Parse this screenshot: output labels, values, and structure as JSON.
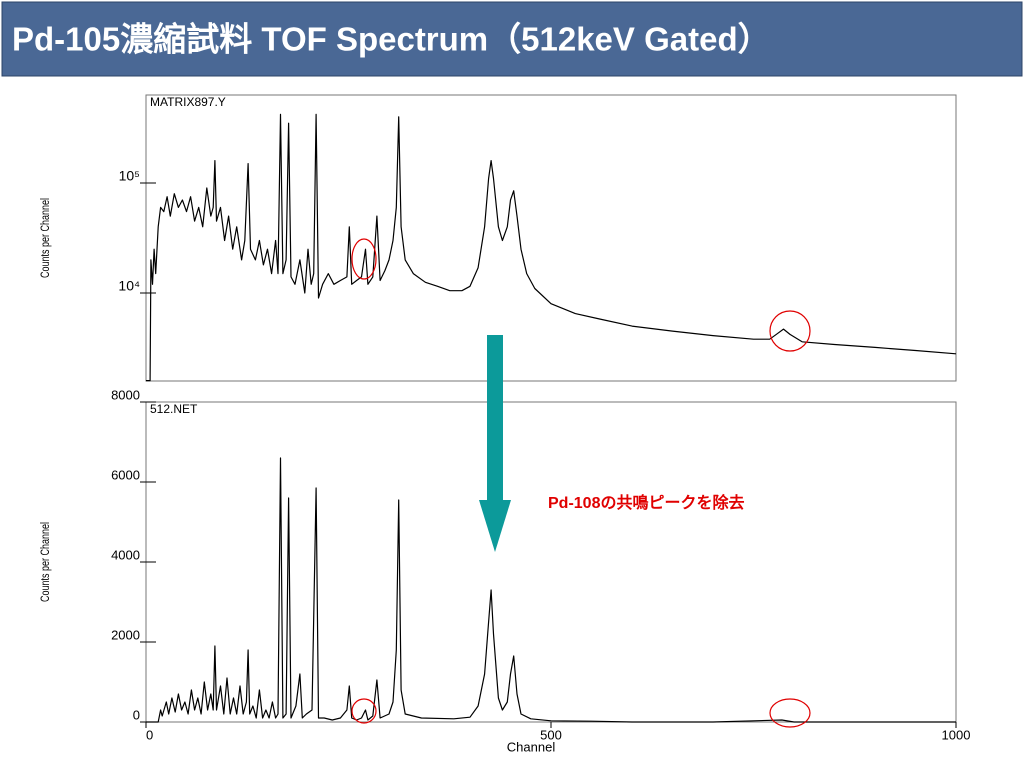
{
  "title": "Pd-105濃縮試料  TOF Spectrum（512keV  Gated）",
  "annotation": "Pd-108の共鳴ピークを除去",
  "chart_data": [
    {
      "type": "line",
      "label": "MATRIX897.Y",
      "ylabel": "Counts per Channel",
      "yscale": "log",
      "color": "#000000",
      "xlim": [
        0,
        1000
      ],
      "ylim": [
        1585,
        631000
      ],
      "yticks": [
        {
          "value": 10000,
          "label": "10⁴"
        },
        {
          "value": 100000,
          "label": "10⁵"
        }
      ],
      "x": [
        0,
        5,
        6,
        8,
        10,
        12,
        15,
        18,
        22,
        26,
        30,
        35,
        40,
        45,
        50,
        55,
        60,
        65,
        70,
        75,
        80,
        83,
        85,
        87,
        92,
        97,
        102,
        107,
        112,
        118,
        122,
        126,
        129,
        135,
        140,
        145,
        150,
        155,
        160,
        163,
        166,
        169,
        173,
        176,
        179,
        184,
        190,
        196,
        200,
        204,
        207,
        210,
        213,
        218,
        225,
        232,
        240,
        248,
        251,
        254,
        260,
        266,
        271,
        274,
        280,
        285,
        289,
        295,
        300,
        305,
        309,
        312,
        315,
        320,
        330,
        345,
        360,
        375,
        390,
        400,
        410,
        418,
        423,
        426,
        429,
        435,
        440,
        446,
        450,
        454,
        458,
        463,
        470,
        480,
        500,
        530,
        560,
        600,
        650,
        700,
        750,
        770,
        780,
        787,
        795,
        810,
        850,
        900,
        950,
        1000
      ],
      "values": [
        1600,
        1600,
        20000,
        12000,
        25000,
        15000,
        40000,
        60000,
        55000,
        75000,
        50000,
        80000,
        60000,
        70000,
        55000,
        75000,
        45000,
        60000,
        40000,
        90000,
        50000,
        60000,
        160000,
        45000,
        60000,
        30000,
        50000,
        25000,
        40000,
        20000,
        30000,
        150000,
        25000,
        20000,
        30000,
        18000,
        25000,
        15000,
        30000,
        15000,
        420000,
        15000,
        20000,
        350000,
        14000,
        12000,
        20000,
        10000,
        25000,
        12000,
        15000,
        420000,
        9000,
        12000,
        15000,
        12000,
        13000,
        14000,
        40000,
        12000,
        13000,
        14000,
        25000,
        12000,
        14000,
        50000,
        13000,
        16000,
        20000,
        30000,
        60000,
        400000,
        40000,
        20000,
        15000,
        12500,
        11500,
        10500,
        10500,
        11500,
        17000,
        40000,
        110000,
        160000,
        110000,
        40000,
        30000,
        40000,
        70000,
        85000,
        50000,
        25000,
        15000,
        11000,
        8000,
        6500,
        5800,
        5000,
        4500,
        4100,
        3800,
        3800,
        4300,
        4700,
        4200,
        3600,
        3400,
        3200,
        3000,
        2800
      ]
    },
    {
      "type": "line",
      "label": "512.NET",
      "ylabel": "Counts per Channel",
      "xlabel": "Channel",
      "color": "#000000",
      "xlim": [
        0,
        1000
      ],
      "ylim": [
        0,
        8000
      ],
      "xticks": [
        0,
        500,
        1000
      ],
      "yticks": [
        0,
        2000,
        4000,
        6000,
        8000
      ],
      "x": [
        0,
        15,
        18,
        20,
        25,
        28,
        32,
        36,
        40,
        44,
        48,
        52,
        56,
        60,
        64,
        68,
        72,
        76,
        80,
        83,
        85,
        87,
        92,
        96,
        100,
        104,
        108,
        112,
        116,
        120,
        124,
        126,
        128,
        132,
        136,
        140,
        144,
        148,
        152,
        156,
        160,
        163,
        166,
        169,
        173,
        176,
        179,
        185,
        190,
        193,
        198,
        205,
        210,
        213,
        220,
        230,
        240,
        248,
        251,
        254,
        260,
        266,
        271,
        274,
        280,
        285,
        289,
        300,
        305,
        309,
        312,
        315,
        320,
        340,
        380,
        400,
        410,
        418,
        423,
        426,
        429,
        435,
        440,
        446,
        450,
        454,
        458,
        463,
        475,
        500,
        550,
        600,
        700,
        785,
        800,
        900,
        1000
      ],
      "values": [
        0,
        0,
        300,
        150,
        500,
        200,
        600,
        250,
        700,
        300,
        500,
        200,
        800,
        300,
        600,
        200,
        1000,
        300,
        700,
        300,
        1900,
        300,
        900,
        200,
        1100,
        200,
        600,
        200,
        900,
        200,
        500,
        1800,
        200,
        400,
        100,
        800,
        100,
        300,
        100,
        500,
        100,
        200,
        6600,
        100,
        200,
        5600,
        100,
        400,
        1200,
        100,
        200,
        300,
        5850,
        100,
        100,
        50,
        100,
        300,
        900,
        100,
        50,
        100,
        300,
        50,
        150,
        1050,
        100,
        200,
        500,
        1800,
        5550,
        800,
        200,
        100,
        80,
        120,
        400,
        1200,
        2500,
        3300,
        2200,
        600,
        300,
        500,
        1200,
        1650,
        700,
        200,
        80,
        30,
        20,
        0,
        0,
        50,
        0,
        0,
        0
      ]
    }
  ]
}
